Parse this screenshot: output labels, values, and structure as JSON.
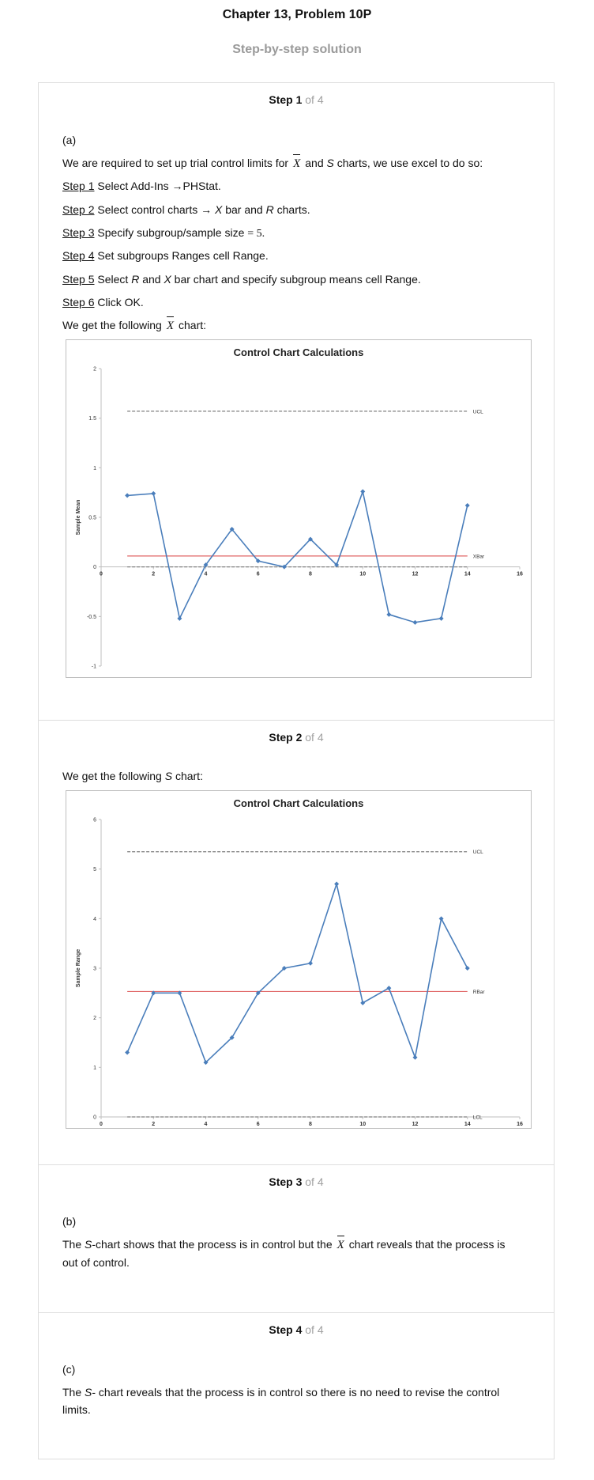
{
  "header": {
    "title": "Chapter 13, Problem 10P",
    "subtitle": "Step-by-step solution"
  },
  "steps": [
    {
      "label": "Step 1",
      "of": "of 4"
    },
    {
      "label": "Step 2",
      "of": "of 4"
    },
    {
      "label": "Step 3",
      "of": "of 4"
    },
    {
      "label": "Step 4",
      "of": "of 4"
    }
  ],
  "step1": {
    "part": "(a)",
    "intro_a": "We are required to set up trial control limits for",
    "intro_sym": "X",
    "intro_b": "and",
    "intro_s": "S",
    "intro_c": "charts, we use excel to do so:",
    "lines": [
      {
        "label": "Step 1",
        "text": " Select Add-Ins →PHStat."
      },
      {
        "label": "Step 2",
        "text": " Select control charts → "
      },
      {
        "label": "Step 3",
        "text": " Specify subgroup/sample size "
      },
      {
        "label": "Step 4",
        "text": " Set subgroups Ranges cell Range."
      },
      {
        "label": "Step 5",
        "text": " Select "
      },
      {
        "label": "Step 6",
        "text": " Click OK."
      }
    ],
    "line2_x": "X",
    "line2_mid": " bar and ",
    "line2_r": "R",
    "line2_end": " charts.",
    "line3_math": "= 5.",
    "line5_r": "R",
    "line5_mid": " and ",
    "line5_x": "X",
    "line5_end": " bar chart and specify subgroup means cell Range.",
    "outro_a": "We get the following",
    "outro_sym": "X",
    "outro_b": "chart:"
  },
  "step2": {
    "text_a": "We get the following ",
    "text_s": "S",
    "text_b": " chart:"
  },
  "step3": {
    "part": "(b)",
    "text_a": "The ",
    "text_s": "S",
    "text_b": "-chart shows that the process is in control but the",
    "text_sym": "X",
    "text_c": "chart reveals that the process is",
    "text_d": "out of control."
  },
  "step4": {
    "part": "(c)",
    "text_a": "The ",
    "text_s": "S",
    "text_b": "- chart reveals that the process is in control so there is no need to revise the control",
    "text_c": "limits."
  },
  "chart_data": [
    {
      "type": "line",
      "title": "Control Chart Calculations",
      "ylabel": "Sample Mean",
      "xlabel": "",
      "xlim": [
        0,
        16
      ],
      "ylim": [
        -1,
        2
      ],
      "xticks": [
        0,
        2,
        4,
        6,
        8,
        10,
        12,
        14,
        16
      ],
      "yticks": [
        -1,
        -0.5,
        0,
        0.5,
        1,
        1.5,
        2
      ],
      "series": [
        {
          "x": [
            1,
            2,
            3,
            4,
            5,
            6,
            7,
            8,
            9,
            10,
            11,
            12,
            13,
            14
          ],
          "values": [
            0.72,
            0.74,
            -0.52,
            0.02,
            0.38,
            0.06,
            0.0,
            0.28,
            0.02,
            0.76,
            -0.48,
            -0.56,
            -0.52,
            0.62
          ],
          "color": "#4a7ebb"
        }
      ],
      "ref_lines": [
        {
          "label": "UCL",
          "y": 1.57,
          "style": "dashed",
          "color": "#7f7f7f"
        },
        {
          "label": "XBar",
          "y": 0.11,
          "style": "solid",
          "color": "#e06666"
        },
        {
          "label": "",
          "y": 0.0,
          "style": "dashed",
          "color": "#7f7f7f"
        }
      ]
    },
    {
      "type": "line",
      "title": "Control Chart Calculations",
      "ylabel": "Sample Range",
      "xlabel": "",
      "xlim": [
        0,
        16
      ],
      "ylim": [
        0,
        6
      ],
      "xticks": [
        0,
        2,
        4,
        6,
        8,
        10,
        12,
        14,
        16
      ],
      "yticks": [
        0,
        1,
        2,
        3,
        4,
        5,
        6
      ],
      "series": [
        {
          "x": [
            1,
            2,
            3,
            4,
            5,
            6,
            7,
            8,
            9,
            10,
            11,
            12,
            13,
            14
          ],
          "values": [
            1.3,
            2.5,
            2.5,
            1.1,
            1.6,
            2.5,
            3.0,
            3.1,
            4.7,
            2.3,
            2.6,
            1.2,
            4.0,
            3.0
          ],
          "color": "#4a7ebb"
        }
      ],
      "ref_lines": [
        {
          "label": "UCL",
          "y": 5.35,
          "style": "dashed",
          "color": "#7f7f7f"
        },
        {
          "label": "RBar",
          "y": 2.53,
          "style": "solid",
          "color": "#e06666"
        },
        {
          "label": "LCL",
          "y": 0.0,
          "style": "dashed",
          "color": "#7f7f7f"
        }
      ]
    }
  ]
}
